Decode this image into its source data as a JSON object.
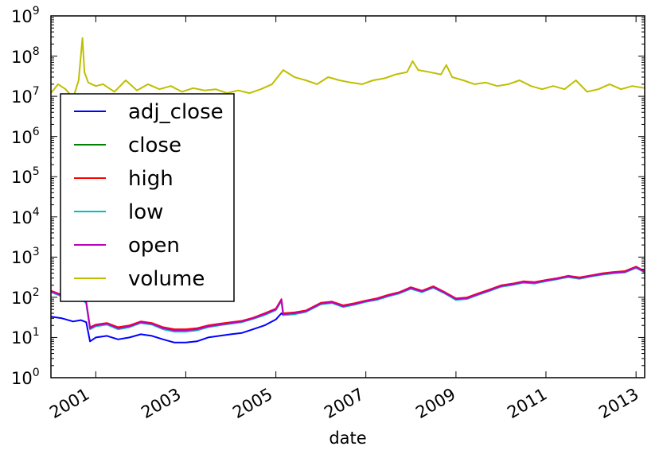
{
  "chart_data": {
    "type": "line",
    "title": "",
    "xlabel": "date",
    "ylabel": "",
    "yscale": "log",
    "ylim": [
      1,
      1000000000
    ],
    "xlim": [
      "2000-01-03",
      "2013-03-12"
    ],
    "grid": false,
    "legend_position": "center-left",
    "x_tick_labels": [
      "2001",
      "2003",
      "2005",
      "2007",
      "2009",
      "2011",
      "2013"
    ],
    "y_tick_labels": [
      {
        "base": "10",
        "exp": "0"
      },
      {
        "base": "10",
        "exp": "1"
      },
      {
        "base": "10",
        "exp": "2"
      },
      {
        "base": "10",
        "exp": "3"
      },
      {
        "base": "10",
        "exp": "4"
      },
      {
        "base": "10",
        "exp": "5"
      },
      {
        "base": "10",
        "exp": "6"
      },
      {
        "base": "10",
        "exp": "7"
      },
      {
        "base": "10",
        "exp": "8"
      },
      {
        "base": "10",
        "exp": "9"
      }
    ],
    "series": [
      {
        "name": "adj_close",
        "color": "#0000ff",
        "x": [
          "2000-01-03",
          "2000-04-01",
          "2000-07-01",
          "2000-09-01",
          "2000-10-15",
          "2000-11-15",
          "2001-01-01",
          "2001-04-01",
          "2001-07-01",
          "2001-10-01",
          "2002-01-01",
          "2002-04-01",
          "2002-07-01",
          "2002-10-01",
          "2003-01-01",
          "2003-04-01",
          "2003-07-01",
          "2003-10-01",
          "2004-01-01",
          "2004-04-01",
          "2004-07-01",
          "2004-10-01",
          "2005-01-01",
          "2005-02-15",
          "2005-03-01",
          "2005-06-01",
          "2005-09-01",
          "2006-01-01",
          "2006-04-01",
          "2006-07-01",
          "2006-10-01",
          "2007-01-01",
          "2007-04-01",
          "2007-07-01",
          "2007-10-01",
          "2008-01-01",
          "2008-04-01",
          "2008-07-01",
          "2008-10-01",
          "2009-01-01",
          "2009-04-01",
          "2009-07-01",
          "2009-10-01",
          "2010-01-01",
          "2010-04-01",
          "2010-07-01",
          "2010-10-01",
          "2011-01-01",
          "2011-04-01",
          "2011-07-01",
          "2011-10-01",
          "2012-01-01",
          "2012-04-01",
          "2012-07-01",
          "2012-10-01",
          "2013-01-01",
          "2013-03-12"
        ],
        "y": [
          33,
          30,
          25,
          27,
          24,
          8,
          10,
          11,
          9,
          10,
          12,
          11,
          9,
          7.5,
          7.5,
          8,
          10,
          11,
          12,
          13,
          16,
          20,
          28,
          40,
          36,
          38,
          45,
          70,
          75,
          60,
          68,
          80,
          90,
          110,
          130,
          170,
          140,
          180,
          130,
          90,
          95,
          120,
          150,
          190,
          210,
          240,
          230,
          260,
          290,
          330,
          300,
          340,
          380,
          410,
          430,
          560,
          430
        ]
      },
      {
        "name": "close",
        "color": "#008000",
        "x": [
          "2000-01-03",
          "2000-04-01",
          "2000-07-01",
          "2000-09-01",
          "2000-10-15",
          "2000-11-15",
          "2001-01-01",
          "2001-04-01",
          "2001-07-01",
          "2001-10-01",
          "2002-01-01",
          "2002-04-01",
          "2002-07-01",
          "2002-10-01",
          "2003-01-01",
          "2003-04-01",
          "2003-07-01",
          "2003-10-01",
          "2004-01-01",
          "2004-04-01",
          "2004-07-01",
          "2004-10-01",
          "2005-01-01",
          "2005-02-15",
          "2005-03-01",
          "2005-06-01",
          "2005-09-01",
          "2006-01-01",
          "2006-04-01",
          "2006-07-01",
          "2006-10-01",
          "2007-01-01",
          "2007-04-01",
          "2007-07-01",
          "2007-10-01",
          "2008-01-01",
          "2008-04-01",
          "2008-07-01",
          "2008-10-01",
          "2009-01-01",
          "2009-04-01",
          "2009-07-01",
          "2009-10-01",
          "2010-01-01",
          "2010-04-01",
          "2010-07-01",
          "2010-10-01",
          "2011-01-01",
          "2011-04-01",
          "2011-07-01",
          "2011-10-01",
          "2012-01-01",
          "2012-04-01",
          "2012-07-01",
          "2012-10-01",
          "2013-01-01",
          "2013-03-12"
        ],
        "y": [
          140,
          110,
          85,
          95,
          75,
          17,
          20,
          22,
          17,
          19,
          24,
          22,
          17,
          15,
          15,
          16,
          19,
          21,
          23,
          25,
          30,
          38,
          50,
          85,
          38,
          40,
          45,
          70,
          75,
          60,
          68,
          80,
          90,
          110,
          130,
          170,
          140,
          180,
          130,
          90,
          95,
          120,
          150,
          190,
          210,
          240,
          230,
          260,
          290,
          330,
          300,
          340,
          380,
          410,
          430,
          560,
          430
        ]
      },
      {
        "name": "high",
        "color": "#ff0000",
        "x": [
          "2000-01-03",
          "2000-04-01",
          "2000-07-01",
          "2000-09-01",
          "2000-10-15",
          "2000-11-15",
          "2001-01-01",
          "2001-04-01",
          "2001-07-01",
          "2001-10-01",
          "2002-01-01",
          "2002-04-01",
          "2002-07-01",
          "2002-10-01",
          "2003-01-01",
          "2003-04-01",
          "2003-07-01",
          "2003-10-01",
          "2004-01-01",
          "2004-04-01",
          "2004-07-01",
          "2004-10-01",
          "2005-01-01",
          "2005-02-15",
          "2005-03-01",
          "2005-06-01",
          "2005-09-01",
          "2006-01-01",
          "2006-04-01",
          "2006-07-01",
          "2006-10-01",
          "2007-01-01",
          "2007-04-01",
          "2007-07-01",
          "2007-10-01",
          "2008-01-01",
          "2008-04-01",
          "2008-07-01",
          "2008-10-01",
          "2009-01-01",
          "2009-04-01",
          "2009-07-01",
          "2009-10-01",
          "2010-01-01",
          "2010-04-01",
          "2010-07-01",
          "2010-10-01",
          "2011-01-01",
          "2011-04-01",
          "2011-07-01",
          "2011-10-01",
          "2012-01-01",
          "2012-04-01",
          "2012-07-01",
          "2012-10-01",
          "2013-01-01",
          "2013-03-12"
        ],
        "y": [
          145,
          115,
          88,
          98,
          78,
          18,
          21,
          23,
          18,
          20,
          25,
          23,
          18,
          16,
          16,
          17,
          20,
          22,
          24,
          26,
          31,
          40,
          52,
          90,
          40,
          42,
          47,
          73,
          78,
          63,
          71,
          83,
          94,
          115,
          135,
          178,
          146,
          188,
          135,
          94,
          99,
          125,
          156,
          198,
          218,
          250,
          240,
          270,
          300,
          342,
          312,
          352,
          395,
          425,
          448,
          580,
          445
        ]
      },
      {
        "name": "low",
        "color": "#00bfbf",
        "x": [
          "2000-01-03",
          "2000-04-01",
          "2000-07-01",
          "2000-09-01",
          "2000-10-15",
          "2000-11-15",
          "2001-01-01",
          "2001-04-01",
          "2001-07-01",
          "2001-10-01",
          "2002-01-01",
          "2002-04-01",
          "2002-07-01",
          "2002-10-01",
          "2003-01-01",
          "2003-04-01",
          "2003-07-01",
          "2003-10-01",
          "2004-01-01",
          "2004-04-01",
          "2004-07-01",
          "2004-10-01",
          "2005-01-01",
          "2005-02-15",
          "2005-03-01",
          "2005-06-01",
          "2005-09-01",
          "2006-01-01",
          "2006-04-01",
          "2006-07-01",
          "2006-10-01",
          "2007-01-01",
          "2007-04-01",
          "2007-07-01",
          "2007-10-01",
          "2008-01-01",
          "2008-04-01",
          "2008-07-01",
          "2008-10-01",
          "2009-01-01",
          "2009-04-01",
          "2009-07-01",
          "2009-10-01",
          "2010-01-01",
          "2010-04-01",
          "2010-07-01",
          "2010-10-01",
          "2011-01-01",
          "2011-04-01",
          "2011-07-01",
          "2011-10-01",
          "2012-01-01",
          "2012-04-01",
          "2012-07-01",
          "2012-10-01",
          "2013-01-01",
          "2013-03-12"
        ],
        "y": [
          135,
          105,
          82,
          92,
          72,
          16,
          19,
          21,
          16,
          18,
          23,
          21,
          16,
          14,
          14,
          15,
          18,
          20,
          22,
          24,
          29,
          36,
          48,
          80,
          36,
          38,
          43,
          67,
          72,
          57,
          65,
          77,
          86,
          105,
          125,
          162,
          134,
          172,
          125,
          86,
          91,
          115,
          144,
          182,
          202,
          230,
          220,
          250,
          280,
          318,
          288,
          328,
          365,
          395,
          412,
          540,
          415
        ]
      },
      {
        "name": "open",
        "color": "#bf00bf",
        "x": [
          "2000-01-03",
          "2000-04-01",
          "2000-07-01",
          "2000-09-01",
          "2000-10-15",
          "2000-11-15",
          "2001-01-01",
          "2001-04-01",
          "2001-07-01",
          "2001-10-01",
          "2002-01-01",
          "2002-04-01",
          "2002-07-01",
          "2002-10-01",
          "2003-01-01",
          "2003-04-01",
          "2003-07-01",
          "2003-10-01",
          "2004-01-01",
          "2004-04-01",
          "2004-07-01",
          "2004-10-01",
          "2005-01-01",
          "2005-02-15",
          "2005-03-01",
          "2005-06-01",
          "2005-09-01",
          "2006-01-01",
          "2006-04-01",
          "2006-07-01",
          "2006-10-01",
          "2007-01-01",
          "2007-04-01",
          "2007-07-01",
          "2007-10-01",
          "2008-01-01",
          "2008-04-01",
          "2008-07-01",
          "2008-10-01",
          "2009-01-01",
          "2009-04-01",
          "2009-07-01",
          "2009-10-01",
          "2010-01-01",
          "2010-04-01",
          "2010-07-01",
          "2010-10-01",
          "2011-01-01",
          "2011-04-01",
          "2011-07-01",
          "2011-10-01",
          "2012-01-01",
          "2012-04-01",
          "2012-07-01",
          "2012-10-01",
          "2013-01-01",
          "2013-03-12"
        ],
        "y": [
          140,
          112,
          86,
          96,
          76,
          17,
          20,
          22,
          17,
          19,
          24,
          22,
          17,
          15,
          15,
          16,
          19,
          21,
          23,
          25,
          30,
          38,
          50,
          86,
          38,
          40,
          45,
          70,
          75,
          60,
          68,
          80,
          90,
          110,
          130,
          170,
          140,
          180,
          130,
          90,
          95,
          120,
          150,
          190,
          210,
          240,
          230,
          260,
          290,
          330,
          300,
          340,
          380,
          410,
          430,
          560,
          430
        ]
      },
      {
        "name": "volume",
        "color": "#bfbf00",
        "x": [
          "2000-01-03",
          "2000-03-01",
          "2000-05-01",
          "2000-07-01",
          "2000-08-15",
          "2000-09-15",
          "2000-10-01",
          "2000-11-01",
          "2001-01-01",
          "2001-03-01",
          "2001-06-01",
          "2001-09-01",
          "2001-12-01",
          "2002-03-01",
          "2002-06-01",
          "2002-09-01",
          "2002-12-01",
          "2003-03-01",
          "2003-06-01",
          "2003-09-01",
          "2003-12-01",
          "2004-03-01",
          "2004-06-01",
          "2004-09-01",
          "2004-12-01",
          "2005-03-01",
          "2005-06-01",
          "2005-09-01",
          "2005-12-01",
          "2006-03-01",
          "2006-06-01",
          "2006-09-01",
          "2006-12-01",
          "2007-03-01",
          "2007-06-01",
          "2007-09-01",
          "2007-12-01",
          "2008-01-15",
          "2008-03-01",
          "2008-06-01",
          "2008-09-01",
          "2008-10-15",
          "2008-12-01",
          "2009-03-01",
          "2009-06-01",
          "2009-09-01",
          "2009-12-01",
          "2010-03-01",
          "2010-06-01",
          "2010-09-01",
          "2010-12-01",
          "2011-03-01",
          "2011-06-01",
          "2011-09-01",
          "2011-12-01",
          "2012-03-01",
          "2012-06-01",
          "2012-09-01",
          "2012-12-01",
          "2013-03-12"
        ],
        "y": [
          12000000,
          20000000,
          15000000,
          9000000,
          25000000,
          280000000,
          40000000,
          22000000,
          18000000,
          20000000,
          13000000,
          25000000,
          14000000,
          20000000,
          15000000,
          18000000,
          13000000,
          16000000,
          14000000,
          15000000,
          12000000,
          14000000,
          12000000,
          15000000,
          20000000,
          45000000,
          30000000,
          25000000,
          20000000,
          30000000,
          25000000,
          22000000,
          20000000,
          25000000,
          28000000,
          35000000,
          40000000,
          75000000,
          45000000,
          40000000,
          35000000,
          60000000,
          30000000,
          25000000,
          20000000,
          22000000,
          18000000,
          20000000,
          25000000,
          18000000,
          15000000,
          18000000,
          15000000,
          25000000,
          13000000,
          15000000,
          20000000,
          15000000,
          18000000,
          16000000
        ]
      }
    ]
  }
}
